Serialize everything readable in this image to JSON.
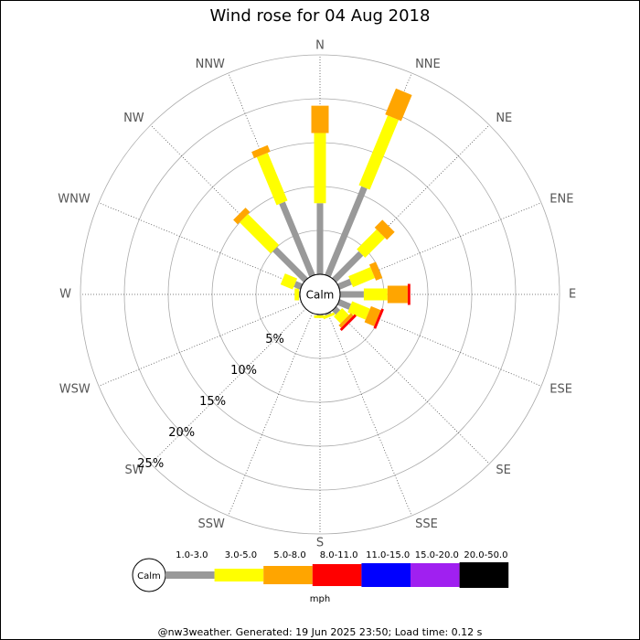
{
  "chart_data": {
    "type": "windrose",
    "title": "Wind rose for 04 Aug 2018",
    "calm_label": "Calm",
    "unit": "mph",
    "footer": "@nw3weather. Generated: 19 Jun 2025 23:50; Load time: 0.12 s",
    "categories": [
      "N",
      "NNE",
      "NE",
      "ENE",
      "E",
      "ESE",
      "SE",
      "SSE",
      "S",
      "SSW",
      "SW",
      "WSW",
      "W",
      "WNW",
      "NW",
      "NNW"
    ],
    "rlim": [
      0,
      25
    ],
    "rticks": [
      {
        "value": 5,
        "label": "5%"
      },
      {
        "value": 10,
        "label": "10%"
      },
      {
        "value": 15,
        "label": "15%"
      },
      {
        "value": 20,
        "label": "20%"
      },
      {
        "value": 25,
        "label": "25%"
      }
    ],
    "series": [
      {
        "name": "1.0-3.0",
        "color": "#999999",
        "values": [
          8.1,
          10.9,
          4.3,
          1.5,
          2.7,
          1.4,
          0.6,
          0.2,
          0.1,
          0,
          0,
          0,
          0.1,
          0.8,
          5.0,
          9.0
        ]
      },
      {
        "name": "3.0-5.0",
        "color": "#ffff00",
        "values": [
          8.0,
          8.6,
          3.2,
          2.7,
          2.7,
          2.2,
          1.1,
          0.3,
          0.3,
          0,
          0,
          0,
          0.5,
          1.5,
          5.0,
          5.9
        ]
      },
      {
        "name": "5.0-8.0",
        "color": "#ffa500",
        "values": [
          3.1,
          3.2,
          1.25,
          0.8,
          2.3,
          1.2,
          0.4,
          0,
          0,
          0,
          0,
          0,
          0,
          0,
          0.7,
          0.8
        ]
      },
      {
        "name": "8.0-11.0",
        "color": "#ff0000",
        "values": [
          0,
          0,
          0,
          0,
          0.3,
          0.3,
          0.3,
          0,
          0,
          0,
          0,
          0,
          0,
          0,
          0,
          0
        ]
      },
      {
        "name": "11.0-15.0",
        "color": "#0000ff",
        "values": [
          0,
          0,
          0,
          0,
          0,
          0,
          0,
          0,
          0,
          0,
          0,
          0,
          0,
          0,
          0,
          0
        ]
      },
      {
        "name": "15.0-20.0",
        "color": "#a020f0",
        "values": [
          0,
          0,
          0,
          0,
          0,
          0,
          0,
          0,
          0,
          0,
          0,
          0,
          0,
          0,
          0,
          0
        ]
      },
      {
        "name": "20.0-50.0",
        "color": "#000000",
        "values": [
          0,
          0,
          0,
          0,
          0,
          0,
          0,
          0,
          0,
          0,
          0,
          0,
          0,
          0,
          0,
          0
        ]
      }
    ]
  }
}
